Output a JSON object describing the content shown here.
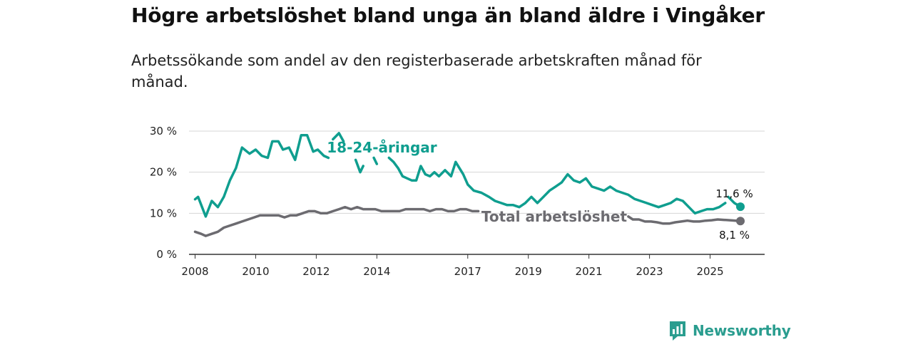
{
  "brand": {
    "name": "Newsworthy",
    "icon": "newsworthy-logo-icon",
    "color": "#2a9d8f"
  },
  "chart_data": {
    "type": "line",
    "title": "Högre arbetslöshet bland unga än bland äldre i Vingåker",
    "subtitle": "Arbetssökande som andel av den registerbaserade arbetskraften månad för månad.",
    "xlabel": "",
    "ylabel": "",
    "ylim": [
      0,
      30
    ],
    "xlim": [
      2007.8,
      2026.8
    ],
    "y_ticks": [
      0,
      10,
      20,
      30
    ],
    "y_tick_labels": [
      "0 %",
      "10 %",
      "20 %",
      "30 %"
    ],
    "x_ticks": [
      2008,
      2010,
      2012,
      2014,
      2017,
      2019,
      2021,
      2023,
      2025
    ],
    "x_tick_labels": [
      "2008",
      "2010",
      "2012",
      "2014",
      "2017",
      "2019",
      "2021",
      "2023",
      "2025"
    ],
    "grid": true,
    "series": [
      {
        "name": "18-24-åringar",
        "color": "#0f9e8f",
        "end_value_label": "11,6 %",
        "segments": [
          {
            "x": [
              2008.0,
              2008.1,
              2008.35,
              2008.55,
              2008.75,
              2008.95,
              2009.15,
              2009.35,
              2009.55,
              2009.8,
              2010.0,
              2010.2,
              2010.4,
              2010.55,
              2010.75,
              2010.9,
              2011.1,
              2011.3,
              2011.5,
              2011.7,
              2011.9,
              2012.05,
              2012.25,
              2012.4
            ],
            "y": [
              13.4,
              14.0,
              9.2,
              13.0,
              11.5,
              14.0,
              18.0,
              21.0,
              26.0,
              24.5,
              25.5,
              24.0,
              23.5,
              27.5,
              27.5,
              25.5,
              26.0,
              23.0,
              29.0,
              29.0,
              25.0,
              25.5,
              24.0,
              23.5
            ]
          },
          {
            "x": [
              2012.55,
              2012.75,
              2012.9
            ],
            "y": [
              28.0,
              29.5,
              27.5
            ]
          },
          {
            "x": [
              2013.3,
              2013.45,
              2013.55
            ],
            "y": [
              23.0,
              20.0,
              21.5
            ]
          },
          {
            "x": [
              2013.9,
              2014.0
            ],
            "y": [
              23.5,
              22.0
            ]
          },
          {
            "x": [
              2014.4,
              2014.55,
              2014.7,
              2014.85,
              2015.0,
              2015.15,
              2015.3,
              2015.45,
              2015.6,
              2015.75,
              2015.9,
              2016.05,
              2016.25,
              2016.45,
              2016.6,
              2016.85,
              2017.0,
              2017.2,
              2017.45,
              2017.7,
              2017.9,
              2018.1,
              2018.3,
              2018.5,
              2018.7,
              2018.9,
              2019.1,
              2019.3,
              2019.5,
              2019.7,
              2019.9,
              2020.1,
              2020.3,
              2020.5,
              2020.7,
              2020.9,
              2021.1,
              2021.3,
              2021.5,
              2021.7,
              2021.9,
              2022.1,
              2022.3,
              2022.5,
              2022.7,
              2022.9,
              2023.1,
              2023.3,
              2023.5,
              2023.7,
              2023.9,
              2024.1,
              2024.3,
              2024.5,
              2024.7,
              2024.9,
              2025.1,
              2025.3,
              2025.5
            ],
            "y": [
              23.5,
              22.5,
              21.0,
              19.0,
              18.5,
              18.0,
              18.0,
              21.5,
              19.5,
              19.0,
              20.0,
              19.0,
              20.5,
              19.0,
              22.5,
              19.5,
              17.0,
              15.5,
              15.0,
              14.0,
              13.0,
              12.5,
              12.0,
              12.0,
              11.5,
              12.5,
              14.0,
              12.5,
              14.0,
              15.5,
              16.5,
              17.5,
              19.5,
              18.0,
              17.5,
              18.5,
              16.5,
              16.0,
              15.5,
              16.5,
              15.5,
              15.0,
              14.5,
              13.5,
              13.0,
              12.5,
              12.0,
              11.5,
              12.0,
              12.5,
              13.5,
              13.0,
              11.5,
              10.0,
              10.5,
              11.0,
              11.0,
              11.5,
              12.5
            ]
          },
          {
            "x": [
              2025.6,
              2025.8,
              2026.0
            ],
            "y": [
              14.0,
              12.5,
              11.6
            ]
          }
        ]
      },
      {
        "name": "Total arbetslöshet",
        "color": "#6c6b70",
        "end_value_label": "8,1 %",
        "segments": [
          {
            "x": [
              2008.0,
              2008.2,
              2008.35,
              2008.55,
              2008.75,
              2008.95,
              2009.15,
              2009.35,
              2009.55,
              2009.75,
              2009.95,
              2010.15,
              2010.35,
              2010.55,
              2010.75,
              2010.95,
              2011.15,
              2011.35,
              2011.55,
              2011.75,
              2011.95,
              2012.15,
              2012.35,
              2012.55,
              2012.75,
              2012.95,
              2013.15,
              2013.35,
              2013.55,
              2013.75,
              2013.95,
              2014.15,
              2014.35,
              2014.55,
              2014.75,
              2014.95,
              2015.15,
              2015.35,
              2015.55,
              2015.75,
              2015.95,
              2016.15,
              2016.35,
              2016.55,
              2016.75,
              2016.95,
              2017.15,
              2017.35
            ],
            "y": [
              5.5,
              5.0,
              4.5,
              5.0,
              5.5,
              6.5,
              7.0,
              7.5,
              8.0,
              8.5,
              9.0,
              9.5,
              9.5,
              9.5,
              9.5,
              9.0,
              9.5,
              9.5,
              10.0,
              10.5,
              10.5,
              10.0,
              10.0,
              10.5,
              11.0,
              11.5,
              11.0,
              11.5,
              11.0,
              11.0,
              11.0,
              10.5,
              10.5,
              10.5,
              10.5,
              11.0,
              11.0,
              11.0,
              11.0,
              10.5,
              11.0,
              11.0,
              10.5,
              10.5,
              11.0,
              11.0,
              10.5,
              10.5
            ]
          },
          {
            "x": [
              2022.3,
              2022.45,
              2022.65,
              2022.85,
              2023.05,
              2023.25,
              2023.45,
              2023.65,
              2023.85,
              2024.05,
              2024.25,
              2024.45,
              2024.65,
              2024.85,
              2025.05,
              2025.25,
              2025.45,
              2025.65,
              2025.85,
              2026.0
            ],
            "y": [
              9.2,
              8.5,
              8.5,
              8.0,
              8.0,
              7.8,
              7.5,
              7.5,
              7.8,
              8.0,
              8.2,
              8.0,
              8.0,
              8.2,
              8.3,
              8.5,
              8.4,
              8.3,
              8.2,
              8.1
            ]
          }
        ]
      }
    ]
  }
}
